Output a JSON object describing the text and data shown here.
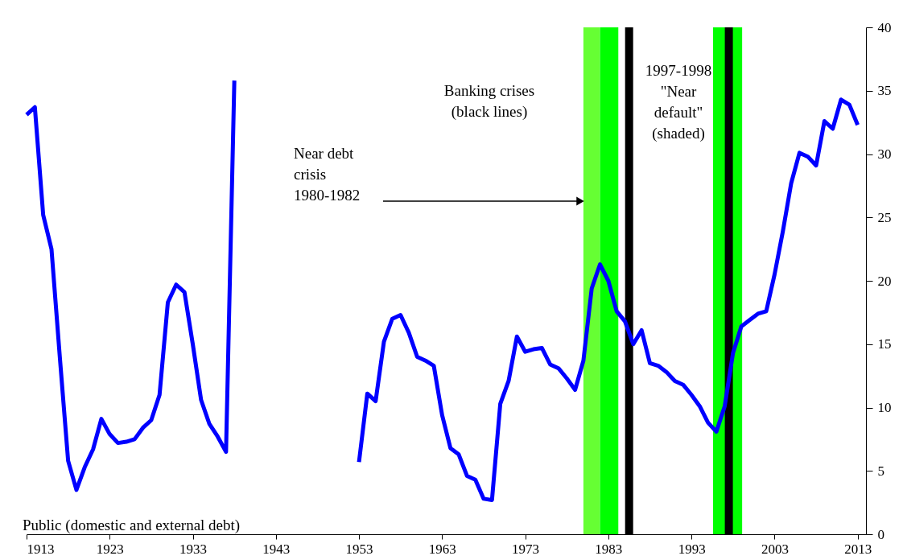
{
  "chart_data": {
    "type": "line",
    "x": [
      1913,
      1914,
      1915,
      1916,
      1917,
      1918,
      1919,
      1920,
      1921,
      1922,
      1923,
      1924,
      1925,
      1926,
      1927,
      1928,
      1929,
      1930,
      1931,
      1932,
      1933,
      1934,
      1935,
      1936,
      1937,
      1938,
      1939,
      1940,
      1941,
      1942,
      1943,
      1944,
      1945,
      1946,
      1947,
      1948,
      1949,
      1950,
      1951,
      1952,
      1953,
      1954,
      1955,
      1956,
      1957,
      1958,
      1959,
      1960,
      1961,
      1962,
      1963,
      1964,
      1965,
      1966,
      1967,
      1968,
      1969,
      1970,
      1971,
      1972,
      1973,
      1974,
      1975,
      1976,
      1977,
      1978,
      1979,
      1980,
      1981,
      1982,
      1983,
      1984,
      1985,
      1986,
      1987,
      1988,
      1989,
      1990,
      1991,
      1992,
      1993,
      1994,
      1995,
      1996,
      1997,
      1998,
      1999,
      2000,
      2001,
      2002,
      2003,
      2004,
      2005,
      2006,
      2007,
      2008,
      2009,
      2010,
      2011,
      2012,
      2013
    ],
    "series": [
      {
        "color": "#0000ff",
        "values": [
          33.1,
          33.7,
          25.2,
          22.5,
          14.0,
          5.8,
          3.5,
          5.3,
          6.7,
          9.1,
          7.9,
          7.2,
          7.3,
          7.5,
          8.4,
          9.0,
          11.0,
          18.3,
          19.7,
          19.1,
          15.0,
          10.6,
          8.7,
          7.7,
          6.5,
          35.8,
          null,
          null,
          null,
          null,
          null,
          null,
          null,
          null,
          null,
          null,
          null,
          null,
          null,
          null,
          5.7,
          11.1,
          10.5,
          15.2,
          17.0,
          17.3,
          15.9,
          14.0,
          13.7,
          13.3,
          9.4,
          6.8,
          6.3,
          4.6,
          4.3,
          2.8,
          2.7,
          10.3,
          12.1,
          15.6,
          14.4,
          14.6,
          14.7,
          13.4,
          13.1,
          12.3,
          11.4,
          13.7,
          19.4,
          21.3,
          20.0,
          17.6,
          16.8,
          15.0,
          16.1,
          13.5,
          13.3,
          12.8,
          12.1,
          11.8,
          11.0,
          10.1,
          8.8,
          8.1,
          10.1,
          14.3,
          16.4,
          16.9,
          17.4,
          17.6,
          20.5,
          23.9,
          27.7,
          30.1,
          29.8,
          29.1,
          32.6,
          32.0,
          34.3,
          33.9,
          32.3
        ]
      }
    ],
    "xlim": [
      1913,
      2014
    ],
    "xticks": [
      1913,
      1923,
      1933,
      1943,
      1953,
      1963,
      1973,
      1983,
      1993,
      2003,
      2013
    ],
    "ylim": [
      0,
      40
    ],
    "yticks": [
      0,
      5,
      10,
      15,
      20,
      25,
      30,
      35,
      40
    ],
    "bands": [
      {
        "axis": "x",
        "from": 1980,
        "to": 1982,
        "color": "#66ff33"
      },
      {
        "axis": "x",
        "from": 1982,
        "to": 1984.2,
        "color": "#00ff00"
      },
      {
        "axis": "x",
        "from": 1995.6,
        "to": 1999.1,
        "color": "#00ff00"
      }
    ],
    "ref_lines": [
      {
        "axis": "x",
        "value": 1985.5,
        "color": "#000000"
      },
      {
        "axis": "x",
        "value": 1997.5,
        "color": "#000000"
      }
    ],
    "annotations": [
      "Banking crises\n(black lines)",
      "1997-1998\n\"Near\ndefault\"\n(shaded)",
      "Near debt\ncrisis\n1980-1982",
      "Public (domestic and external debt)"
    ],
    "grid": false,
    "marker": "none",
    "line_style": "solid"
  }
}
